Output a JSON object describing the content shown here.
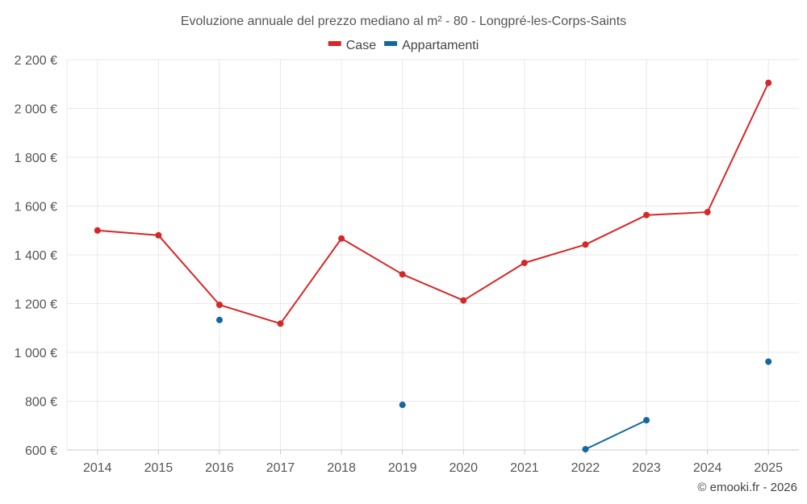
{
  "chart_data": {
    "type": "line",
    "title": "Evoluzione annuale del prezzo mediano al m² - 80 - Longpré-les-Corps-Saints",
    "categories": [
      "2014",
      "2015",
      "2016",
      "2017",
      "2018",
      "2019",
      "2020",
      "2021",
      "2022",
      "2023",
      "2024",
      "2025"
    ],
    "ylim": [
      600,
      2200
    ],
    "yticks": [
      600,
      800,
      1000,
      1200,
      1400,
      1600,
      1800,
      2000,
      2200
    ],
    "ytick_labels": [
      "600 €",
      "800 €",
      "1 000 €",
      "1 200 €",
      "1 400 €",
      "1 600 €",
      "1 800 €",
      "2 000 €",
      "2 200 €"
    ],
    "grid": true,
    "legend_position": "top-center",
    "series": [
      {
        "name": "Case",
        "color": "#d62728",
        "values": [
          1500,
          1480,
          1195,
          1118,
          1467,
          1320,
          1213,
          1367,
          1442,
          1563,
          1575,
          2105
        ]
      },
      {
        "name": "Appartamenti",
        "color": "#14679e",
        "values": [
          null,
          null,
          1133,
          null,
          null,
          785,
          null,
          null,
          603,
          722,
          null,
          962
        ]
      }
    ]
  },
  "credit": "© emooki.fr - 2026"
}
